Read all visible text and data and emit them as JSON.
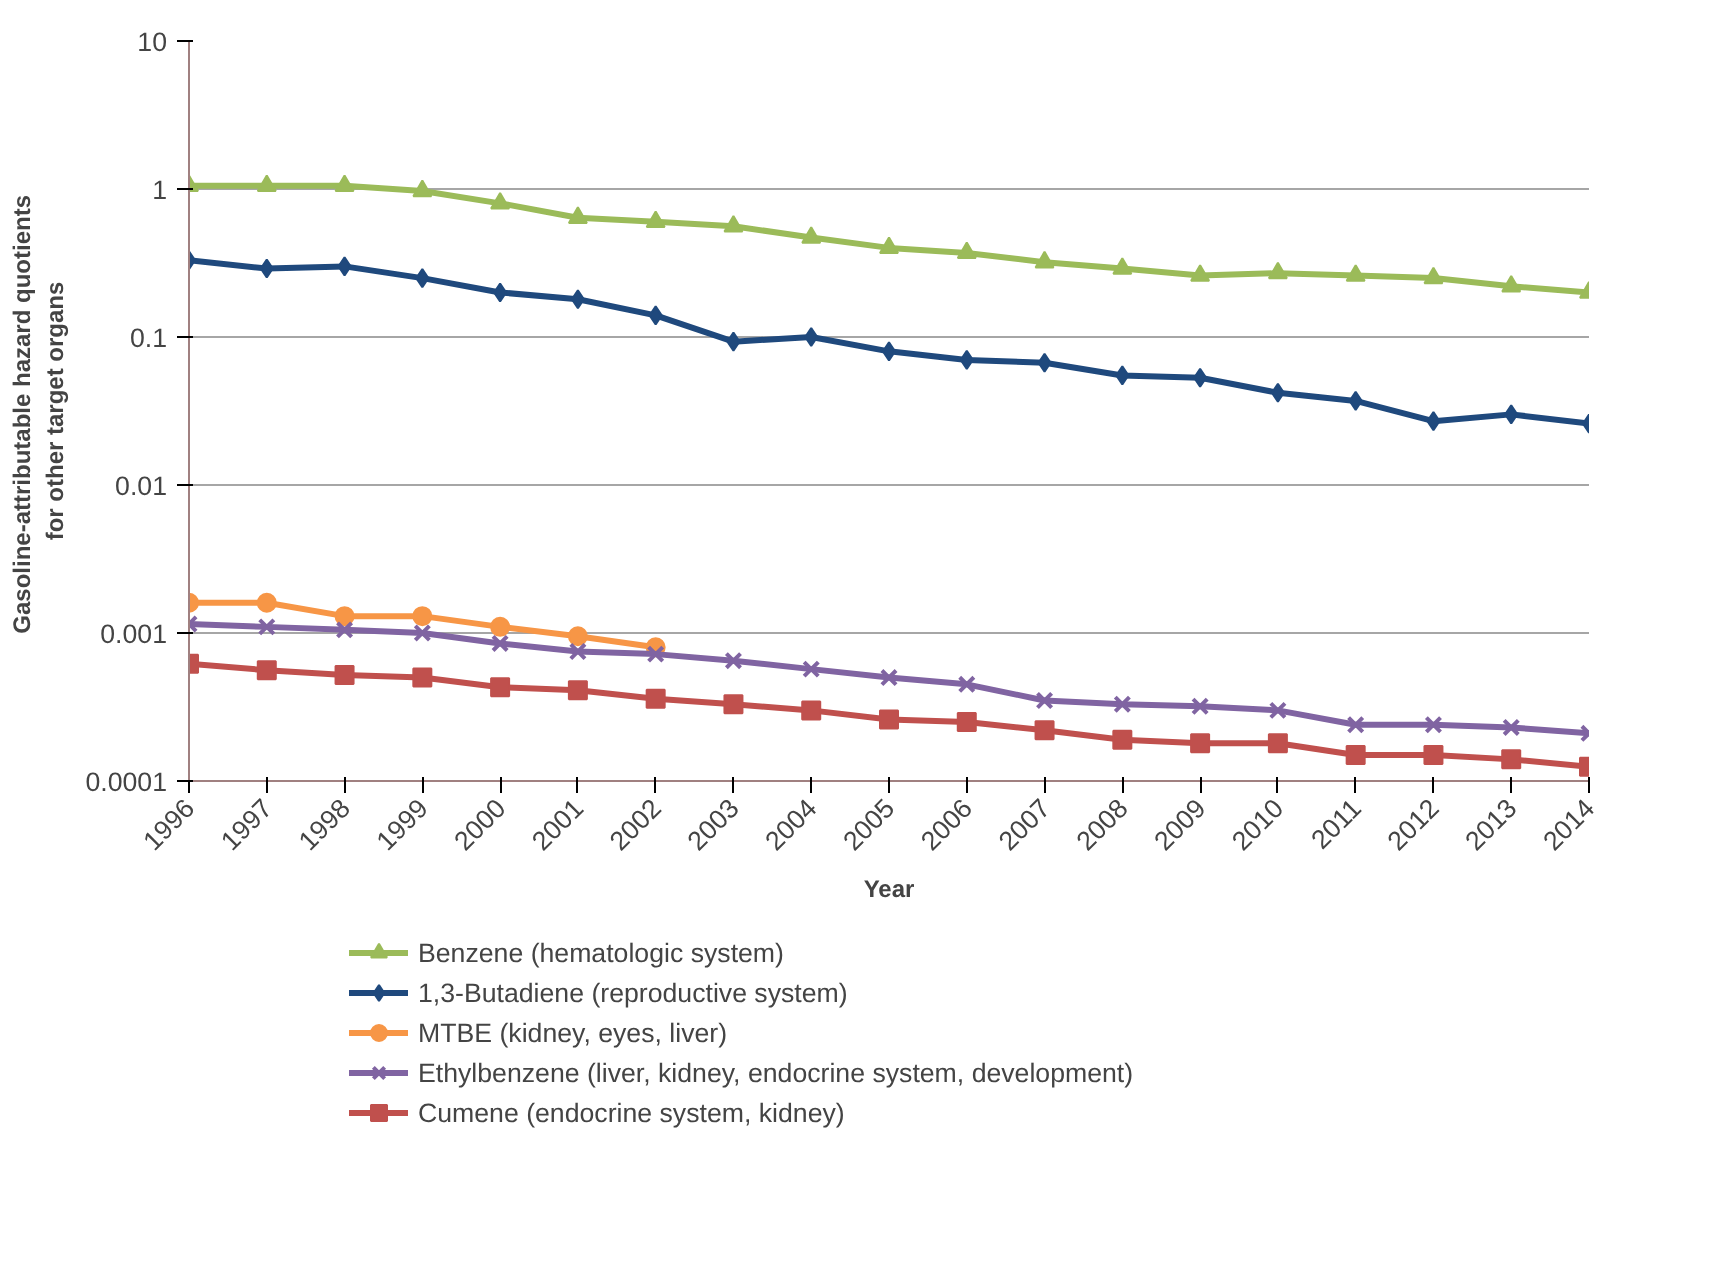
{
  "chart_data": {
    "type": "line",
    "xlabel": "Year",
    "ylabel": "Gasoline-attributable  hazard quotients\nfor other target organs",
    "x": [
      1996,
      1997,
      1998,
      1999,
      2000,
      2001,
      2002,
      2003,
      2004,
      2005,
      2006,
      2007,
      2008,
      2009,
      2010,
      2011,
      2012,
      2013,
      2014
    ],
    "xlim": [
      1996,
      2014
    ],
    "xticks": [
      1996,
      1997,
      1998,
      1999,
      2000,
      2001,
      2002,
      2003,
      2004,
      2005,
      2006,
      2007,
      2008,
      2009,
      2010,
      2011,
      2012,
      2013,
      2014
    ],
    "ylim": [
      0.0001,
      10
    ],
    "yticks": [
      0.0001,
      0.001,
      0.01,
      0.1,
      1,
      10
    ],
    "log": true,
    "grid": "y",
    "legend": "bottom",
    "line_style": "solid",
    "series": [
      {
        "name": "Benzene (hematologic system)",
        "color": "#9bbb59",
        "marker": "triangle",
        "values": [
          1.05,
          1.05,
          1.05,
          0.97,
          0.8,
          0.64,
          0.6,
          0.56,
          0.47,
          0.4,
          0.37,
          0.32,
          0.29,
          0.26,
          0.27,
          0.26,
          0.25,
          0.22,
          0.2
        ]
      },
      {
        "name": "1,3-Butadiene (reproductive system)",
        "color": "#1f497d",
        "marker": "diamond",
        "values": [
          0.33,
          0.29,
          0.3,
          0.25,
          0.2,
          0.18,
          0.14,
          0.093,
          0.1,
          0.08,
          0.07,
          0.067,
          0.055,
          0.053,
          0.042,
          0.037,
          0.027,
          0.03,
          0.026
        ]
      },
      {
        "name": "MTBE (kidney, eyes, liver)",
        "color": "#f79646",
        "marker": "circle",
        "values": [
          0.0016,
          0.0016,
          0.0013,
          0.0013,
          0.0011,
          0.00095,
          0.0008,
          null,
          null,
          null,
          null,
          null,
          null,
          null,
          null,
          null,
          null,
          null,
          null
        ]
      },
      {
        "name": "Ethylbenzene (liver, kidney, endocrine system, development)",
        "color": "#8064a2",
        "marker": "cross",
        "values": [
          0.00115,
          0.0011,
          0.00105,
          0.001,
          0.00085,
          0.00075,
          0.00072,
          0.00065,
          0.00057,
          0.0005,
          0.00045,
          0.00035,
          0.00033,
          0.00032,
          0.0003,
          0.00024,
          0.00024,
          0.00023,
          0.00021
        ]
      },
      {
        "name": "Cumene (endocrine system, kidney)",
        "color": "#c0504d",
        "marker": "square",
        "values": [
          0.00062,
          0.00056,
          0.00052,
          0.0005,
          0.00043,
          0.00041,
          0.00036,
          0.00033,
          0.0003,
          0.00026,
          0.00025,
          0.00022,
          0.00019,
          0.00018,
          0.00018,
          0.00015,
          0.00015,
          0.00014,
          0.000125
        ]
      }
    ]
  }
}
